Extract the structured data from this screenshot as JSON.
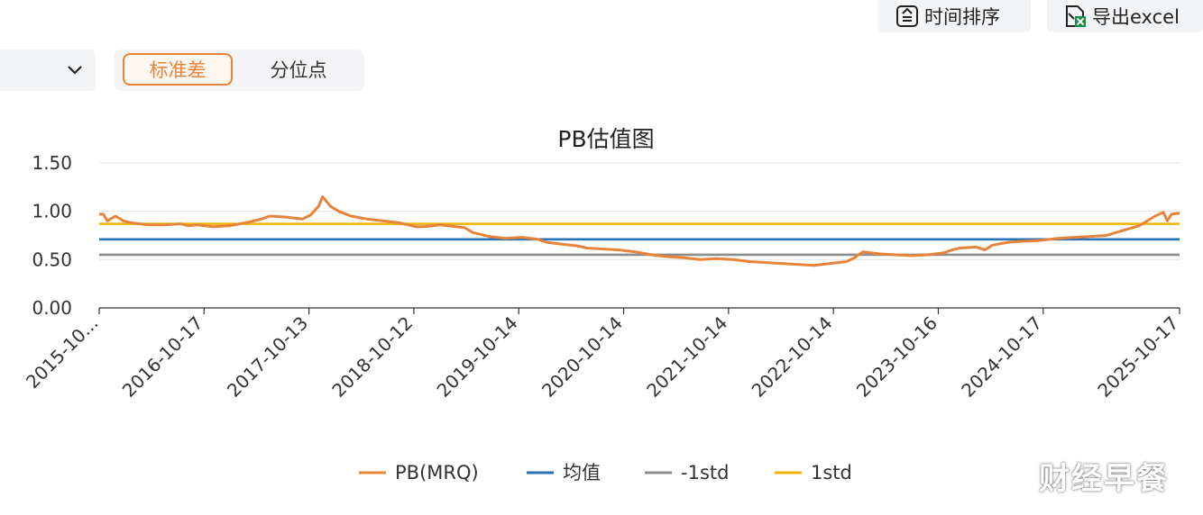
{
  "toolbar": {
    "sort_label": "时间排序",
    "export_label": "导出excel"
  },
  "toggle": {
    "std_label": "标准差",
    "percentile_label": "分位点"
  },
  "watermark": "财经早餐",
  "colors": {
    "pb": "#e8833a",
    "mean": "#2a72b5",
    "minus_std": "#8c8c8c",
    "plus_std": "#f0b400",
    "accent": "#e8833a"
  },
  "chart_data": {
    "type": "line",
    "title": "PB估值图",
    "xlabel": "",
    "ylabel": "",
    "ylim": [
      0,
      1.5
    ],
    "yticks": [
      "0.00",
      "0.50",
      "1.00",
      "1.50"
    ],
    "xticks": [
      "2015-10...",
      "2016-10-17",
      "2017-10-13",
      "2018-10-12",
      "2019-10-14",
      "2020-10-14",
      "2021-10-14",
      "2022-10-14",
      "2023-10-16",
      "2024-10-17",
      "2025-10-17"
    ],
    "grid": true,
    "legend_position": "bottom",
    "series": [
      {
        "name": "PB(MRQ)",
        "points": [
          [
            0.0,
            0.97
          ],
          [
            0.05,
            0.97
          ],
          [
            0.1,
            0.9
          ],
          [
            0.2,
            0.95
          ],
          [
            0.3,
            0.9
          ],
          [
            0.4,
            0.88
          ],
          [
            0.5,
            0.87
          ],
          [
            0.6,
            0.86
          ],
          [
            0.8,
            0.86
          ],
          [
            1.0,
            0.87
          ],
          [
            1.1,
            0.85
          ],
          [
            1.2,
            0.86
          ],
          [
            1.4,
            0.84
          ],
          [
            1.6,
            0.85
          ],
          [
            1.8,
            0.88
          ],
          [
            2.0,
            0.92
          ],
          [
            2.1,
            0.95
          ],
          [
            2.3,
            0.94
          ],
          [
            2.5,
            0.92
          ],
          [
            2.6,
            0.96
          ],
          [
            2.7,
            1.05
          ],
          [
            2.75,
            1.15
          ],
          [
            2.85,
            1.05
          ],
          [
            2.95,
            1.0
          ],
          [
            3.1,
            0.95
          ],
          [
            3.3,
            0.92
          ],
          [
            3.5,
            0.9
          ],
          [
            3.7,
            0.88
          ],
          [
            3.9,
            0.84
          ],
          [
            4.0,
            0.84
          ],
          [
            4.2,
            0.86
          ],
          [
            4.3,
            0.85
          ],
          [
            4.5,
            0.83
          ],
          [
            4.6,
            0.78
          ],
          [
            4.8,
            0.74
          ],
          [
            5.0,
            0.72
          ],
          [
            5.2,
            0.73
          ],
          [
            5.4,
            0.71
          ],
          [
            5.5,
            0.68
          ],
          [
            5.7,
            0.66
          ],
          [
            5.9,
            0.64
          ],
          [
            6.0,
            0.62
          ],
          [
            6.2,
            0.61
          ],
          [
            6.4,
            0.6
          ],
          [
            6.6,
            0.58
          ],
          [
            6.8,
            0.55
          ],
          [
            7.0,
            0.53
          ],
          [
            7.2,
            0.52
          ],
          [
            7.4,
            0.5
          ],
          [
            7.6,
            0.51
          ],
          [
            7.8,
            0.5
          ],
          [
            8.0,
            0.48
          ],
          [
            8.2,
            0.47
          ],
          [
            8.4,
            0.46
          ],
          [
            8.6,
            0.45
          ],
          [
            8.8,
            0.44
          ],
          [
            9.0,
            0.46
          ],
          [
            9.2,
            0.48
          ],
          [
            9.3,
            0.52
          ],
          [
            9.4,
            0.58
          ],
          [
            9.6,
            0.56
          ],
          [
            9.8,
            0.55
          ],
          [
            10.0,
            0.54
          ],
          [
            10.2,
            0.55
          ],
          [
            10.4,
            0.57
          ],
          [
            10.5,
            0.6
          ],
          [
            10.6,
            0.62
          ],
          [
            10.8,
            0.63
          ],
          [
            10.9,
            0.6
          ],
          [
            11.0,
            0.65
          ],
          [
            11.2,
            0.68
          ],
          [
            11.4,
            0.69
          ],
          [
            11.6,
            0.7
          ],
          [
            11.8,
            0.72
          ],
          [
            12.0,
            0.73
          ],
          [
            12.2,
            0.74
          ],
          [
            12.4,
            0.75
          ],
          [
            12.6,
            0.8
          ],
          [
            12.8,
            0.85
          ],
          [
            12.9,
            0.9
          ],
          [
            13.0,
            0.95
          ],
          [
            13.1,
            0.99
          ],
          [
            13.15,
            0.9
          ],
          [
            13.2,
            0.97
          ],
          [
            13.3,
            0.98
          ]
        ]
      },
      {
        "name": "均值",
        "values": [
          0.71
        ]
      },
      {
        "name": "-1std",
        "values": [
          0.55
        ]
      },
      {
        "name": "1std",
        "values": [
          0.87
        ]
      }
    ]
  }
}
